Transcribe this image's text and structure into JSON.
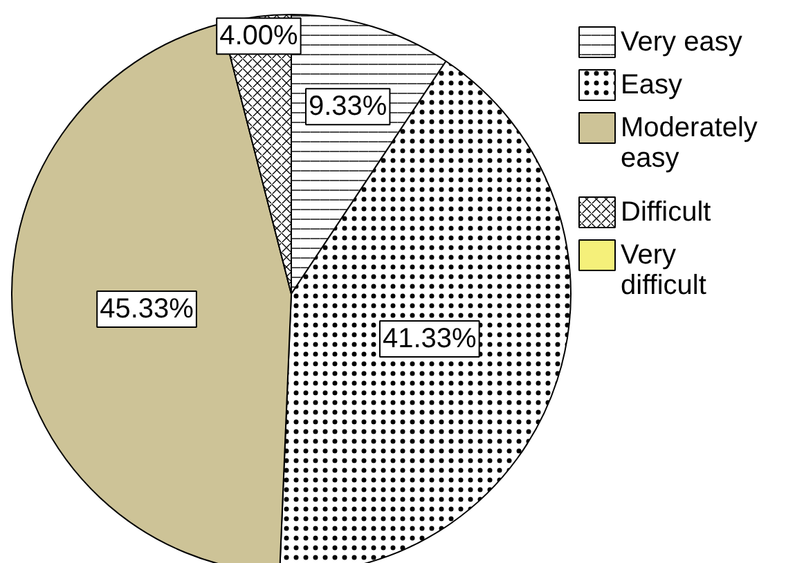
{
  "chart_data": {
    "type": "pie",
    "categories": [
      "Very easy",
      "Easy",
      "Moderately easy",
      "Difficult",
      "Very difficult"
    ],
    "values": [
      9.33,
      41.33,
      45.33,
      4.0,
      0
    ],
    "colors": [
      "#ffffff",
      "#ffffff",
      "#cdc397",
      "#ffffff",
      "#f5f07a"
    ],
    "value_labels": [
      "9.33%",
      "41.33%",
      "45.33%",
      "4.00%",
      null
    ],
    "legend": "right"
  }
}
